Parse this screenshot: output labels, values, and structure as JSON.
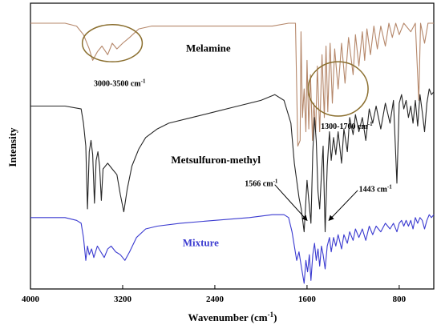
{
  "chart_data": {
    "type": "line",
    "xlabel": "Wavenumber (cm",
    "xlabel_sup": "-1",
    "xlabel_end": ")",
    "ylabel": "Intensity",
    "xlim": [
      4000,
      500
    ],
    "xticks": [
      {
        "value": 4000,
        "label": "4000"
      },
      {
        "value": 3200,
        "label": "3200"
      },
      {
        "value": 2400,
        "label": "2400"
      },
      {
        "value": 1600,
        "label": "1600"
      },
      {
        "value": 800,
        "label": "800"
      }
    ],
    "series": [
      {
        "name": "Melamine",
        "color": "#b5876a",
        "points": [
          [
            4000,
            0.93
          ],
          [
            3700,
            0.93
          ],
          [
            3600,
            0.92
          ],
          [
            3540,
            0.89
          ],
          [
            3490,
            0.84
          ],
          [
            3460,
            0.8
          ],
          [
            3420,
            0.83
          ],
          [
            3380,
            0.85
          ],
          [
            3330,
            0.82
          ],
          [
            3290,
            0.86
          ],
          [
            3250,
            0.84
          ],
          [
            3200,
            0.86
          ],
          [
            3140,
            0.88
          ],
          [
            3060,
            0.91
          ],
          [
            2950,
            0.92
          ],
          [
            2600,
            0.92
          ],
          [
            2200,
            0.92
          ],
          [
            1900,
            0.92
          ],
          [
            1760,
            0.93
          ],
          [
            1700,
            0.93
          ],
          [
            1680,
            0.5
          ],
          [
            1660,
            0.52
          ],
          [
            1652,
            0.9
          ],
          [
            1640,
            0.6
          ],
          [
            1625,
            0.7
          ],
          [
            1610,
            0.55
          ],
          [
            1600,
            0.8
          ],
          [
            1585,
            0.56
          ],
          [
            1570,
            0.75
          ],
          [
            1553,
            0.52
          ],
          [
            1540,
            0.65
          ],
          [
            1525,
            0.55
          ],
          [
            1510,
            0.78
          ],
          [
            1490,
            0.55
          ],
          [
            1470,
            0.82
          ],
          [
            1450,
            0.6
          ],
          [
            1435,
            0.85
          ],
          [
            1420,
            0.62
          ],
          [
            1400,
            0.86
          ],
          [
            1380,
            0.65
          ],
          [
            1360,
            0.84
          ],
          [
            1330,
            0.7
          ],
          [
            1300,
            0.86
          ],
          [
            1270,
            0.72
          ],
          [
            1240,
            0.88
          ],
          [
            1200,
            0.75
          ],
          [
            1180,
            0.89
          ],
          [
            1150,
            0.78
          ],
          [
            1120,
            0.9
          ],
          [
            1100,
            0.8
          ],
          [
            1080,
            0.91
          ],
          [
            1050,
            0.82
          ],
          [
            1020,
            0.92
          ],
          [
            990,
            0.84
          ],
          [
            960,
            0.92
          ],
          [
            920,
            0.85
          ],
          [
            890,
            0.93
          ],
          [
            860,
            0.88
          ],
          [
            830,
            0.93
          ],
          [
            800,
            0.89
          ],
          [
            760,
            0.93
          ],
          [
            700,
            0.9
          ],
          [
            660,
            0.93
          ],
          [
            630,
            0.66
          ],
          [
            615,
            0.93
          ],
          [
            580,
            0.86
          ],
          [
            550,
            0.93
          ],
          [
            500,
            0.93
          ]
        ]
      },
      {
        "name": "Metsulfuron-methyl",
        "color": "#262626",
        "points": [
          [
            4000,
            0.64
          ],
          [
            3700,
            0.64
          ],
          [
            3560,
            0.63
          ],
          [
            3540,
            0.58
          ],
          [
            3520,
            0.5
          ],
          [
            3505,
            0.28
          ],
          [
            3490,
            0.48
          ],
          [
            3475,
            0.52
          ],
          [
            3460,
            0.47
          ],
          [
            3445,
            0.3
          ],
          [
            3430,
            0.45
          ],
          [
            3415,
            0.48
          ],
          [
            3400,
            0.43
          ],
          [
            3385,
            0.31
          ],
          [
            3370,
            0.42
          ],
          [
            3330,
            0.44
          ],
          [
            3290,
            0.42
          ],
          [
            3250,
            0.4
          ],
          [
            3220,
            0.33
          ],
          [
            3190,
            0.27
          ],
          [
            3160,
            0.35
          ],
          [
            3120,
            0.43
          ],
          [
            3060,
            0.49
          ],
          [
            3000,
            0.53
          ],
          [
            2900,
            0.56
          ],
          [
            2800,
            0.58
          ],
          [
            2600,
            0.6
          ],
          [
            2400,
            0.62
          ],
          [
            2200,
            0.64
          ],
          [
            2000,
            0.66
          ],
          [
            1880,
            0.68
          ],
          [
            1800,
            0.66
          ],
          [
            1740,
            0.58
          ],
          [
            1710,
            0.44
          ],
          [
            1690,
            0.38
          ],
          [
            1670,
            0.32
          ],
          [
            1650,
            0.28
          ],
          [
            1625,
            0.2
          ],
          [
            1600,
            0.38
          ],
          [
            1585,
            0.31
          ],
          [
            1566,
            0.23
          ],
          [
            1550,
            0.48
          ],
          [
            1535,
            0.6
          ],
          [
            1520,
            0.52
          ],
          [
            1505,
            0.34
          ],
          [
            1490,
            0.28
          ],
          [
            1475,
            0.4
          ],
          [
            1460,
            0.5
          ],
          [
            1443,
            0.2
          ],
          [
            1425,
            0.43
          ],
          [
            1405,
            0.55
          ],
          [
            1390,
            0.45
          ],
          [
            1370,
            0.53
          ],
          [
            1350,
            0.47
          ],
          [
            1330,
            0.55
          ],
          [
            1300,
            0.44
          ],
          [
            1280,
            0.56
          ],
          [
            1250,
            0.48
          ],
          [
            1230,
            0.6
          ],
          [
            1200,
            0.54
          ],
          [
            1180,
            0.61
          ],
          [
            1150,
            0.55
          ],
          [
            1120,
            0.6
          ],
          [
            1090,
            0.52
          ],
          [
            1060,
            0.63
          ],
          [
            1030,
            0.58
          ],
          [
            1000,
            0.64
          ],
          [
            960,
            0.56
          ],
          [
            920,
            0.65
          ],
          [
            880,
            0.58
          ],
          [
            850,
            0.66
          ],
          [
            820,
            0.37
          ],
          [
            800,
            0.65
          ],
          [
            780,
            0.68
          ],
          [
            760,
            0.63
          ],
          [
            740,
            0.66
          ],
          [
            720,
            0.6
          ],
          [
            700,
            0.64
          ],
          [
            680,
            0.58
          ],
          [
            660,
            0.66
          ],
          [
            640,
            0.57
          ],
          [
            620,
            0.68
          ],
          [
            600,
            0.62
          ],
          [
            580,
            0.55
          ],
          [
            560,
            0.65
          ],
          [
            540,
            0.7
          ],
          [
            520,
            0.68
          ],
          [
            500,
            0.69
          ]
        ]
      },
      {
        "name": "Mixture",
        "color": "#3a3ad0",
        "points": [
          [
            4000,
            0.25
          ],
          [
            3700,
            0.25
          ],
          [
            3600,
            0.24
          ],
          [
            3560,
            0.23
          ],
          [
            3540,
            0.18
          ],
          [
            3520,
            0.1
          ],
          [
            3505,
            0.15
          ],
          [
            3490,
            0.12
          ],
          [
            3470,
            0.14
          ],
          [
            3450,
            0.11
          ],
          [
            3420,
            0.15
          ],
          [
            3390,
            0.13
          ],
          [
            3360,
            0.11
          ],
          [
            3330,
            0.14
          ],
          [
            3300,
            0.15
          ],
          [
            3260,
            0.13
          ],
          [
            3220,
            0.12
          ],
          [
            3180,
            0.1
          ],
          [
            3140,
            0.13
          ],
          [
            3080,
            0.18
          ],
          [
            3000,
            0.21
          ],
          [
            2900,
            0.22
          ],
          [
            2700,
            0.23
          ],
          [
            2400,
            0.24
          ],
          [
            2100,
            0.25
          ],
          [
            1900,
            0.26
          ],
          [
            1800,
            0.26
          ],
          [
            1760,
            0.25
          ],
          [
            1730,
            0.2
          ],
          [
            1710,
            0.15
          ],
          [
            1690,
            0.1
          ],
          [
            1670,
            0.13
          ],
          [
            1650,
            0.08
          ],
          [
            1625,
            0.02
          ],
          [
            1610,
            0.1
          ],
          [
            1595,
            0.06
          ],
          [
            1580,
            0.12
          ],
          [
            1566,
            0.03
          ],
          [
            1550,
            0.12
          ],
          [
            1535,
            0.16
          ],
          [
            1520,
            0.1
          ],
          [
            1505,
            0.14
          ],
          [
            1490,
            0.08
          ],
          [
            1475,
            0.15
          ],
          [
            1460,
            0.12
          ],
          [
            1443,
            0.07
          ],
          [
            1425,
            0.15
          ],
          [
            1405,
            0.18
          ],
          [
            1390,
            0.13
          ],
          [
            1370,
            0.18
          ],
          [
            1350,
            0.15
          ],
          [
            1330,
            0.19
          ],
          [
            1300,
            0.14
          ],
          [
            1280,
            0.19
          ],
          [
            1250,
            0.16
          ],
          [
            1230,
            0.2
          ],
          [
            1200,
            0.17
          ],
          [
            1180,
            0.21
          ],
          [
            1150,
            0.18
          ],
          [
            1120,
            0.21
          ],
          [
            1090,
            0.17
          ],
          [
            1060,
            0.22
          ],
          [
            1030,
            0.19
          ],
          [
            1000,
            0.22
          ],
          [
            960,
            0.2
          ],
          [
            920,
            0.23
          ],
          [
            880,
            0.21
          ],
          [
            850,
            0.23
          ],
          [
            820,
            0.2
          ],
          [
            800,
            0.23
          ],
          [
            780,
            0.24
          ],
          [
            760,
            0.22
          ],
          [
            740,
            0.24
          ],
          [
            720,
            0.22
          ],
          [
            700,
            0.24
          ],
          [
            680,
            0.21
          ],
          [
            660,
            0.25
          ],
          [
            640,
            0.23
          ],
          [
            620,
            0.25
          ],
          [
            600,
            0.24
          ],
          [
            580,
            0.21
          ],
          [
            560,
            0.24
          ],
          [
            540,
            0.26
          ],
          [
            520,
            0.25
          ],
          [
            500,
            0.26
          ]
        ]
      }
    ],
    "series_labels": [
      {
        "text": "Melamine",
        "x": 2650,
        "y": 0.83,
        "color": "#000000"
      },
      {
        "text": "Metsulfuron-methyl",
        "x": 2780,
        "y": 0.44,
        "color": "#000000"
      },
      {
        "text": "Mixture",
        "x": 2680,
        "y": 0.15,
        "color": "#3a3ad0"
      }
    ],
    "annotations": [
      {
        "kind": "ellipse",
        "cx": 3290,
        "cy": 0.86,
        "rx": 260,
        "ry": 0.065,
        "color": "#8a6e2e"
      },
      {
        "kind": "ellipse",
        "cx": 1330,
        "cy": 0.7,
        "rx": 260,
        "ry": 0.095,
        "color": "#8a6e2e"
      },
      {
        "kind": "text",
        "text": "3000-3500 cm",
        "sup": "-1",
        "x": 3450,
        "y": 0.71
      },
      {
        "kind": "text",
        "text": "1300-1700 cm",
        "sup": "-1",
        "x": 1480,
        "y": 0.56
      },
      {
        "kind": "text",
        "text": "1566 cm",
        "sup": "-1",
        "x": 2140,
        "y": 0.36
      },
      {
        "kind": "text",
        "text": "1443 cm",
        "sup": "-1",
        "x": 1150,
        "y": 0.34
      }
    ],
    "arrows": [
      {
        "from": [
          1880,
          0.365
        ],
        "to": [
          1600,
          0.24
        ]
      },
      {
        "from": [
          1160,
          0.345
        ],
        "to": [
          1410,
          0.24
        ]
      }
    ],
    "grid": false,
    "legend": "none"
  }
}
